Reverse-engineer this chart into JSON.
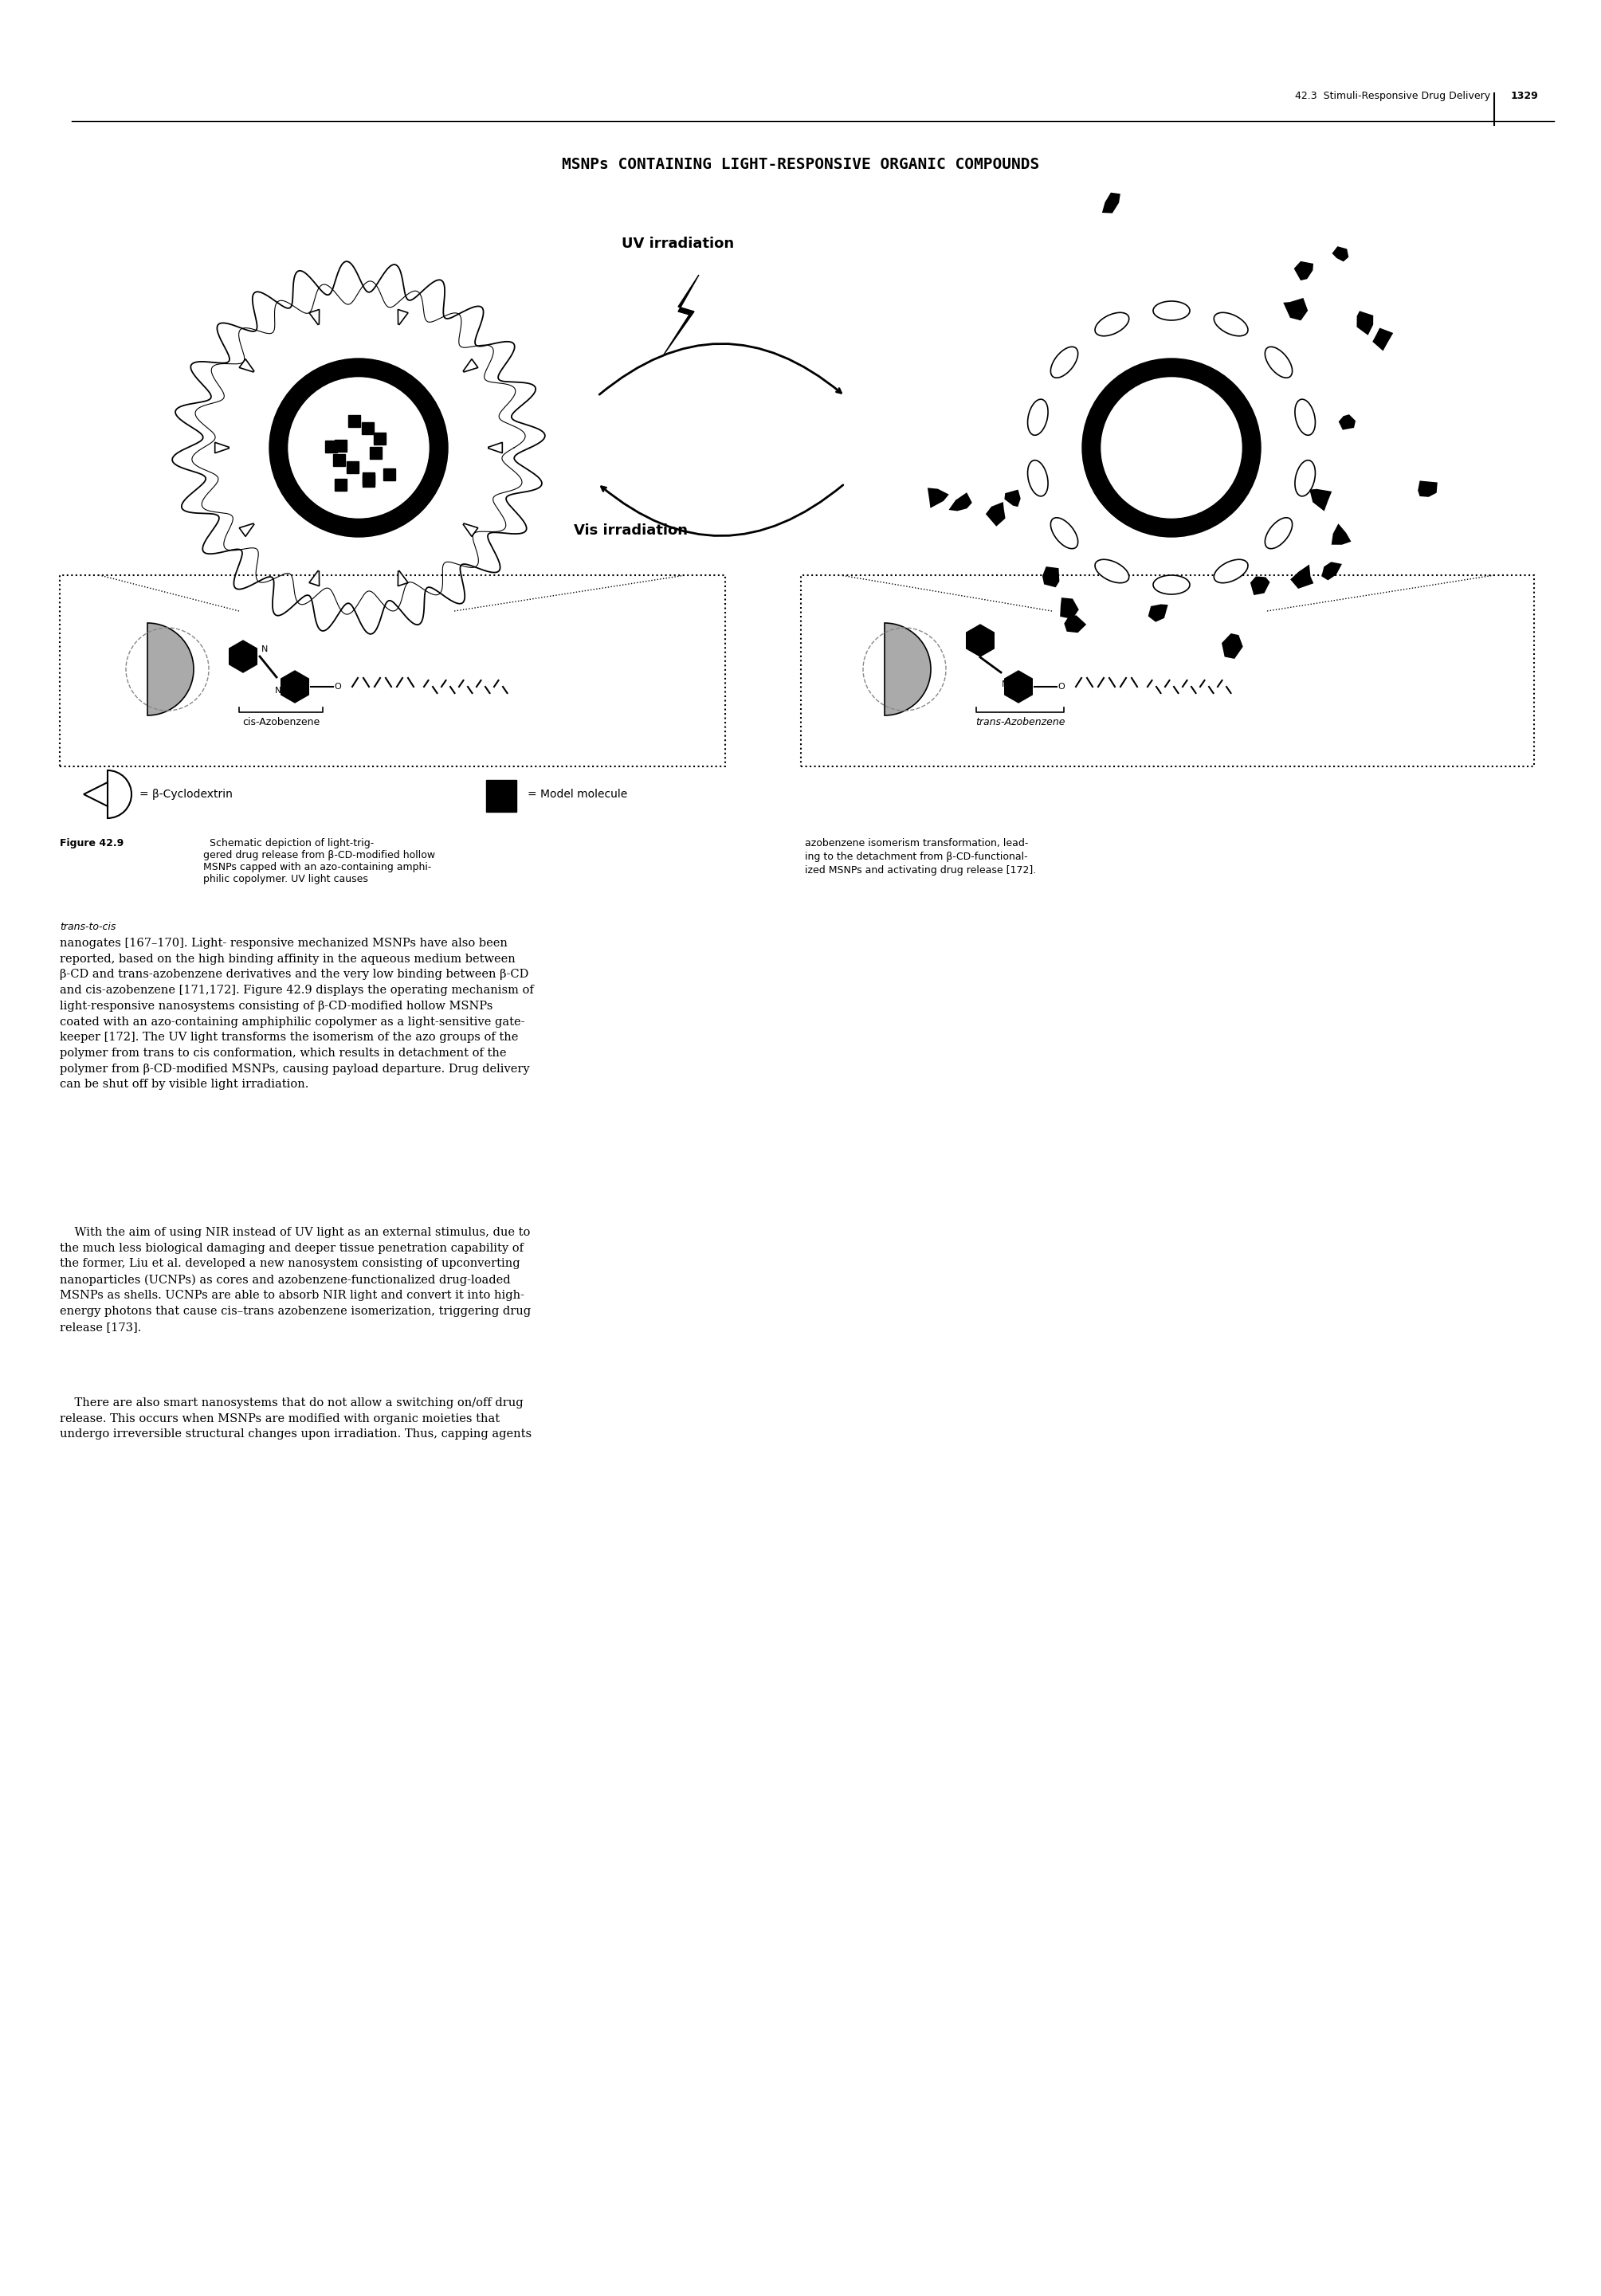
{
  "page_width": 20.09,
  "page_height": 28.82,
  "bg_color": "#ffffff",
  "header_text": "42.3  Stimuli-Responsive Drug Delivery",
  "page_number": "1329",
  "title": "MSNPs CONTAINING LIGHT-RESPONSIVE ORGANIC COMPOUNDS",
  "uv_label": "UV irradiation",
  "vis_label": "Vis irradiation",
  "cis_label": "cis-Azobenzene",
  "trans_label": "trans-Azobenzene",
  "legend_cd": "= β-Cyclodextrin",
  "legend_mm": "= Model molecule",
  "figure_caption_left": "Figure 42.9  Schematic depiction of light-trig-\ngered drug release from β-CD-modified hollow\nMSNPs capped with an azo-containing amphi-\nphilic copolymer. UV light causes trans-to-cis",
  "figure_caption_right": "azobenzene isomerism transformation, lead-\ning to the detachment from β-CD-functional-\nized MSNPs and activating drug release [172].",
  "body_para1": "nanogates [167–170]. Light- responsive mechanized MSNPs have also been\nreported, based on the high binding affinity in the aqueous medium between\nβ-CD and trans-azobenzene derivatives and the very low binding between β-CD\nand cis-azobenzene [171,172]. Figure 42.9 displays the operating mechanism of\nlight-responsive nanosystems consisting of β-CD-modified hollow MSNPs\ncoated with an azo-containing amphiphilic copolymer as a light-sensitive gate-\nkeeper [172]. The UV light transforms the isomerism of the azo groups of the\npolymer from trans to cis conformation, which results in detachment of the\npolymer from β-CD-modified MSNPs, causing payload departure. Drug delivery\ncan be shut off by visible light irradiation.",
  "body_para2": "    With the aim of using NIR instead of UV light as an external stimulus, due to\nthe much less biological damaging and deeper tissue penetration capability of\nthe former, Liu et al. developed a new nanosystem consisting of upconverting\nnanoparticles (UCNPs) as cores and azobenzene-functionalized drug-loaded\nMSNPs as shells. UCNPs are able to absorb NIR light and convert it into high-\nenergy photons that cause cis–trans azobenzene isomerization, triggering drug\nrelease [173].",
  "body_para3": "    There are also smart nanosystems that do not allow a switching on/off drug\nrelease. This occurs when MSNPs are modified with organic moieties that\nundergo irreversible structural changes upon irradiation. Thus, capping agents"
}
